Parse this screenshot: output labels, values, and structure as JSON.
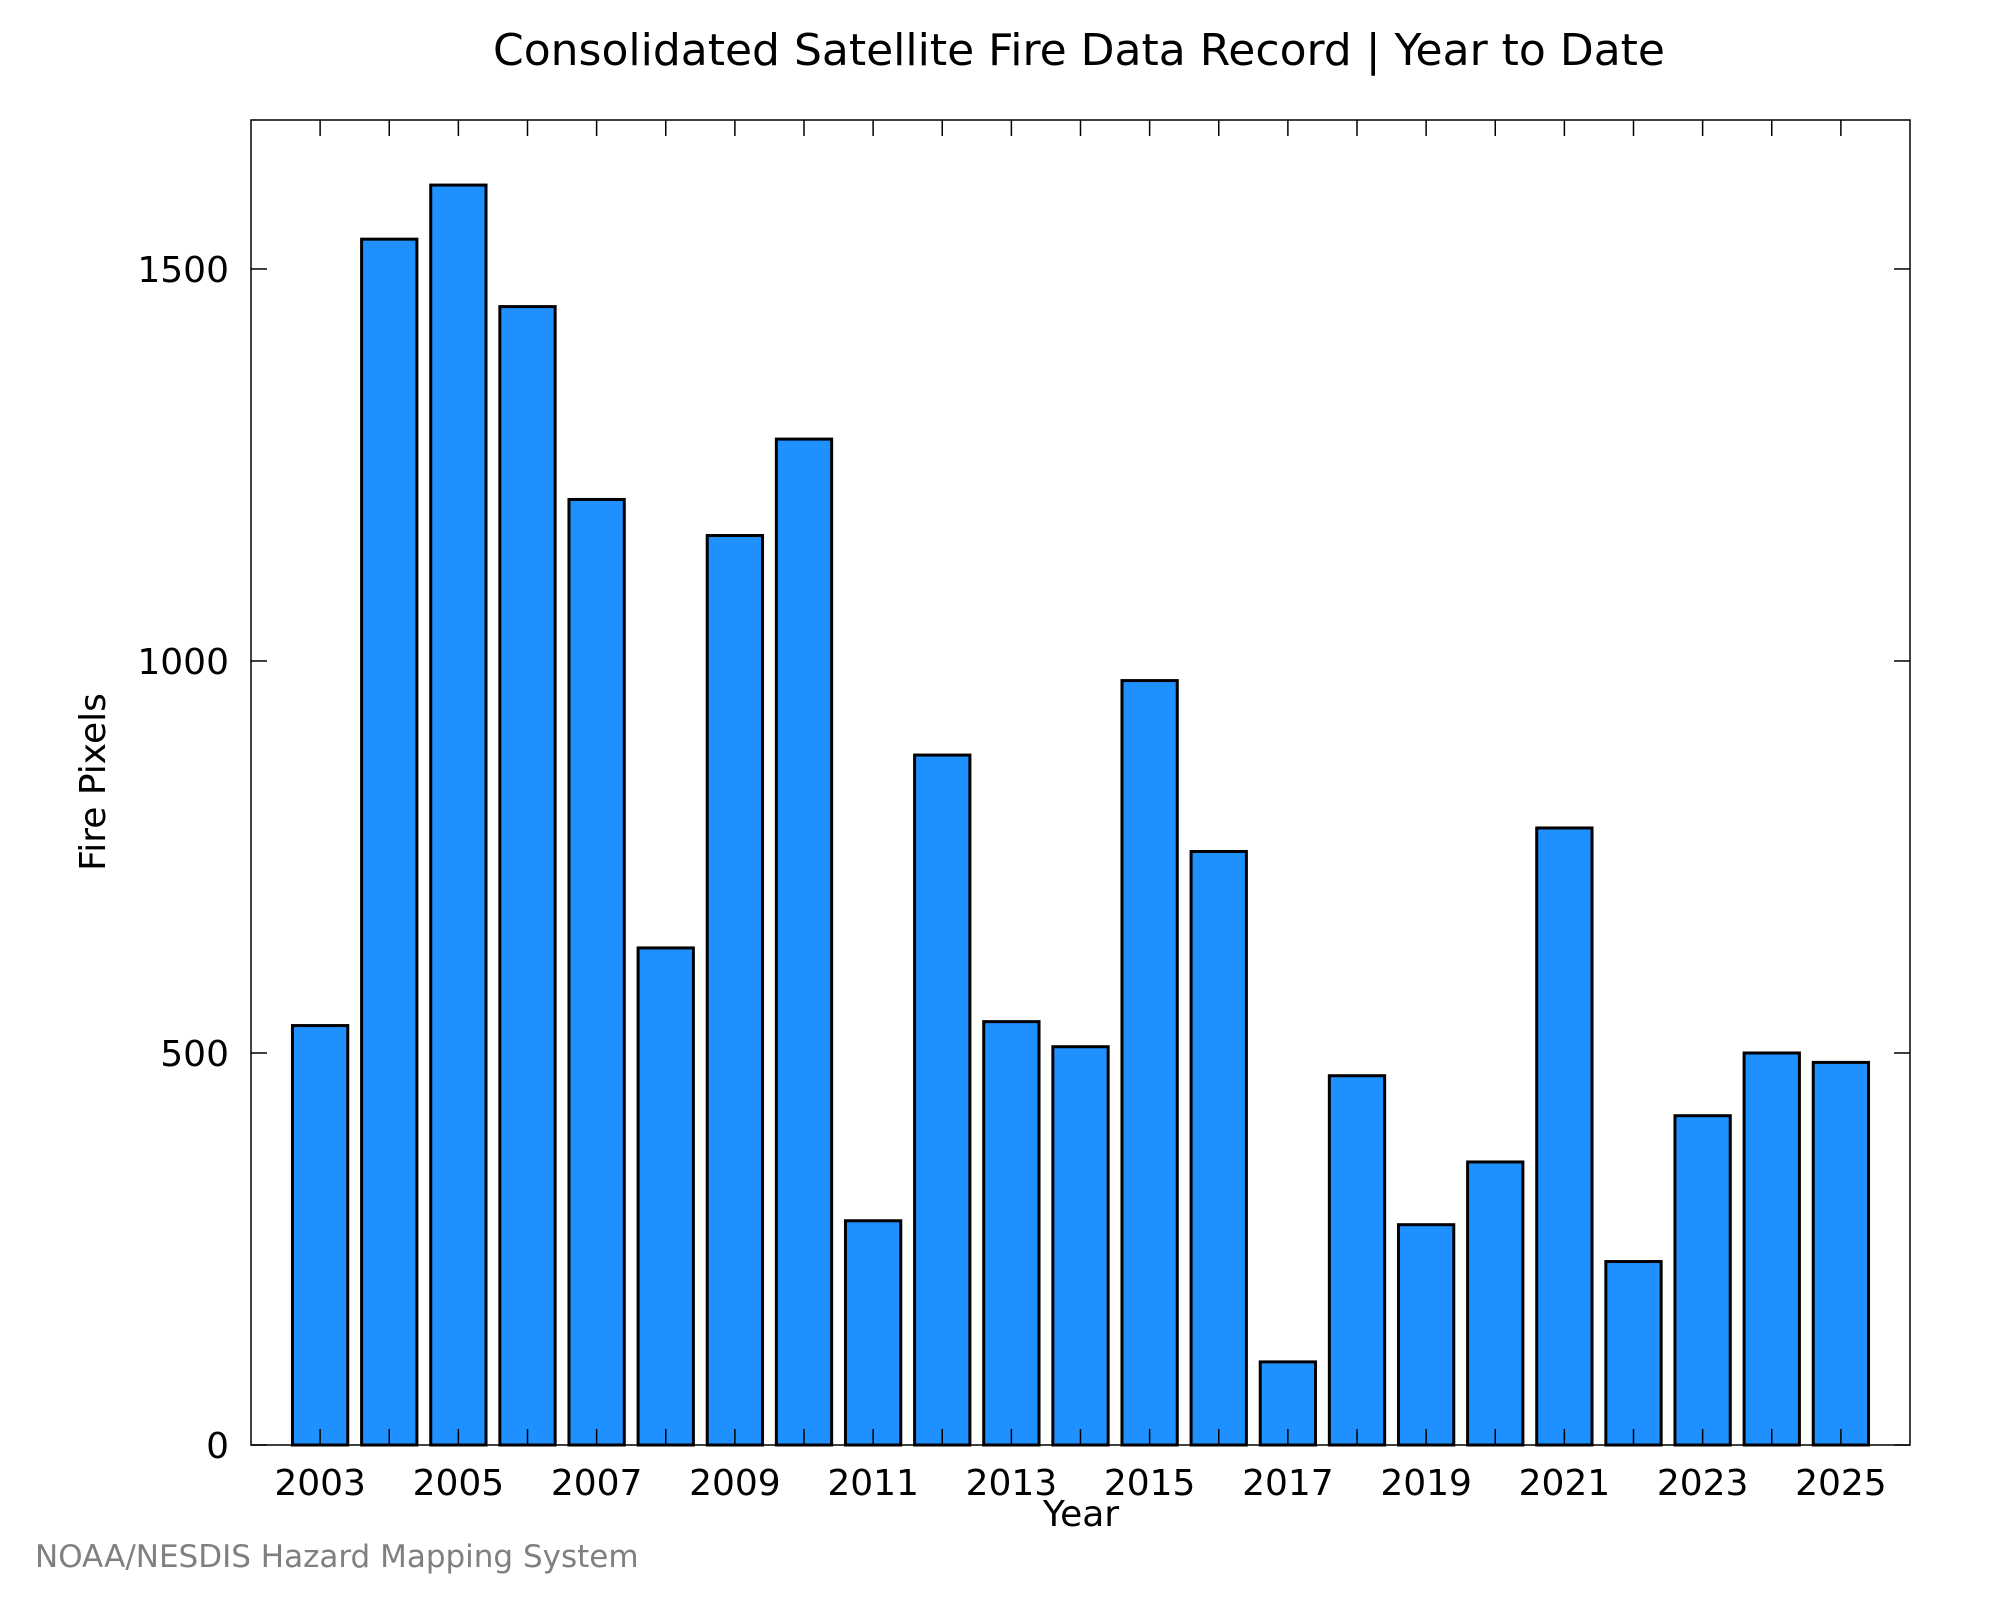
{
  "chart_data": {
    "type": "bar",
    "title": "Consolidated Satellite Fire Data Record | Year to Date",
    "xlabel": "Year",
    "ylabel": "Fire Pixels",
    "categories": [
      2003,
      2004,
      2005,
      2006,
      2007,
      2008,
      2009,
      2010,
      2011,
      2012,
      2013,
      2014,
      2015,
      2016,
      2017,
      2018,
      2019,
      2020,
      2021,
      2022,
      2023,
      2024,
      2025
    ],
    "x_tick_labels": [
      "2003",
      "2005",
      "2007",
      "2009",
      "2011",
      "2013",
      "2015",
      "2017",
      "2019",
      "2021",
      "2023",
      "2025"
    ],
    "y_tick_labels": [
      "0",
      "500",
      "1000",
      "1500"
    ],
    "values": [
      535,
      1538,
      1607,
      1452,
      1206,
      634,
      1160,
      1283,
      286,
      880,
      540,
      508,
      975,
      757,
      106,
      471,
      281,
      361,
      787,
      234,
      420,
      500,
      488
    ],
    "ylim": [
      0,
      1690
    ],
    "grid": false,
    "legend": "none",
    "bar_color": "#1e90ff",
    "edge_color": "#000000"
  },
  "footer": {
    "credit": "NOAA/NESDIS Hazard Mapping System"
  }
}
